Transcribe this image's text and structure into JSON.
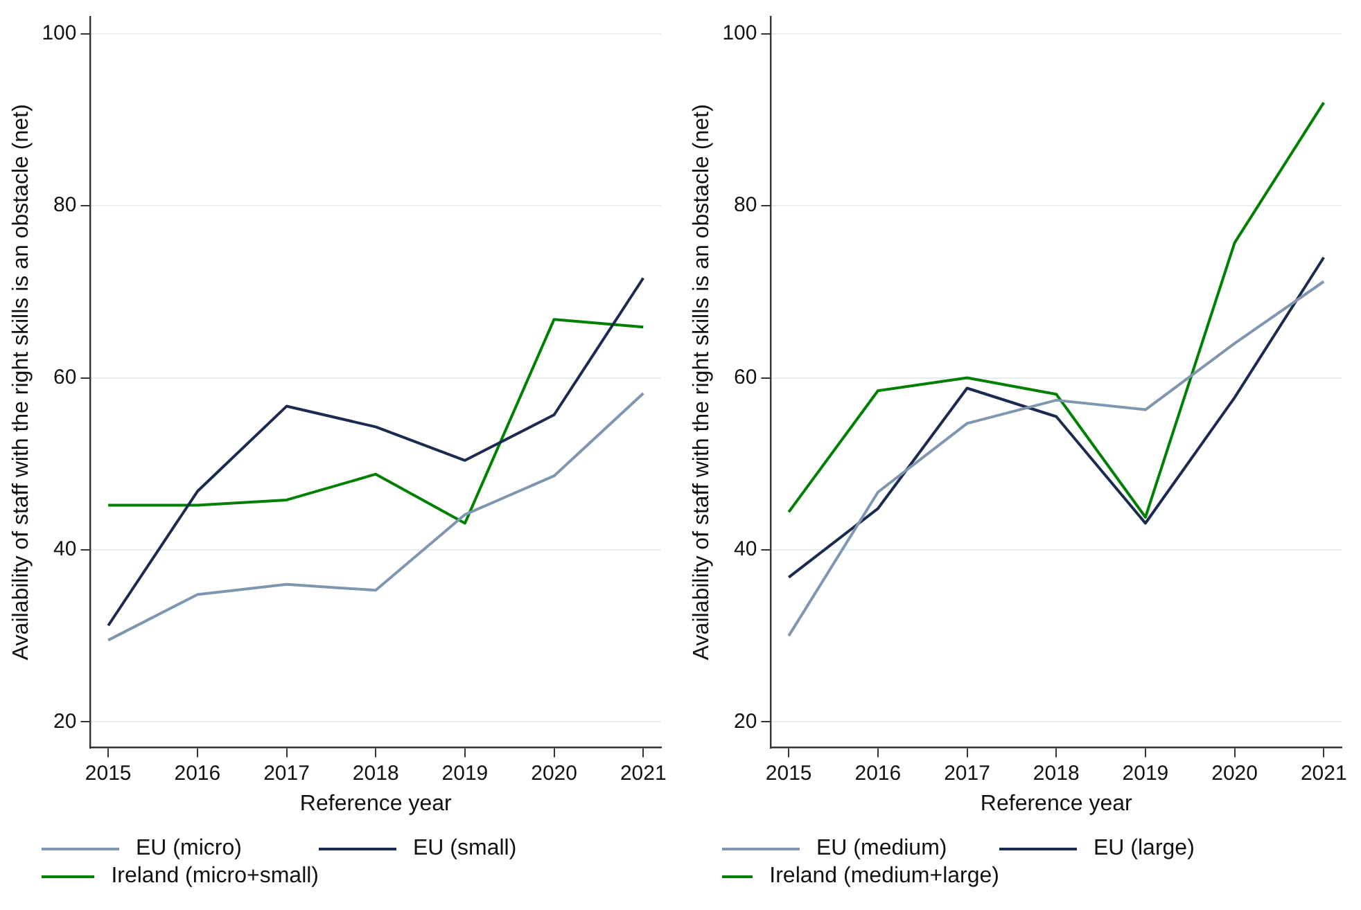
{
  "chart_data": [
    {
      "type": "line",
      "xlabel": "Reference year",
      "ylabel": "Availability of staff with the right skills is an obstacle (net)",
      "x": [
        2015,
        2016,
        2017,
        2018,
        2019,
        2020,
        2021
      ],
      "xlim": [
        2014.8,
        2021.2
      ],
      "xticks": [
        2015,
        2016,
        2017,
        2018,
        2019,
        2020,
        2021
      ],
      "ylim": [
        17,
        102
      ],
      "yticks": [
        20,
        40,
        60,
        80,
        100
      ],
      "grid": "y",
      "legend": "bottom",
      "series": [
        {
          "name": "EU (micro)",
          "color": "#7f96b0",
          "values": [
            29.5,
            34.8,
            36.0,
            35.3,
            44.1,
            48.6,
            58.2
          ]
        },
        {
          "name": "EU (small)",
          "color": "#1b2a4f",
          "values": [
            31.2,
            46.8,
            56.7,
            54.3,
            50.4,
            55.7,
            71.6
          ]
        },
        {
          "name": "Ireland (micro+small)",
          "color": "#008000",
          "values": [
            45.2,
            45.2,
            45.8,
            48.8,
            43.1,
            66.8,
            65.9
          ]
        }
      ]
    },
    {
      "type": "line",
      "xlabel": "Reference year",
      "ylabel": "Availability of staff with the right skills is an obstacle (net)",
      "x": [
        2015,
        2016,
        2017,
        2018,
        2019,
        2020,
        2021
      ],
      "xlim": [
        2014.8,
        2021.2
      ],
      "xticks": [
        2015,
        2016,
        2017,
        2018,
        2019,
        2020,
        2021
      ],
      "ylim": [
        17,
        102
      ],
      "yticks": [
        20,
        40,
        60,
        80,
        100
      ],
      "grid": "y",
      "legend": "bottom",
      "series": [
        {
          "name": "EU (medium)",
          "color": "#7f96b0",
          "values": [
            30.0,
            46.7,
            54.7,
            57.4,
            56.3,
            64.0,
            71.2
          ]
        },
        {
          "name": "EU (large)",
          "color": "#1b2a4f",
          "values": [
            36.8,
            44.8,
            58.8,
            55.5,
            43.1,
            57.7,
            74.0
          ]
        },
        {
          "name": "Ireland (medium+large)",
          "color": "#008000",
          "values": [
            44.4,
            58.5,
            60.0,
            58.1,
            43.8,
            75.7,
            92.0
          ]
        }
      ]
    }
  ]
}
